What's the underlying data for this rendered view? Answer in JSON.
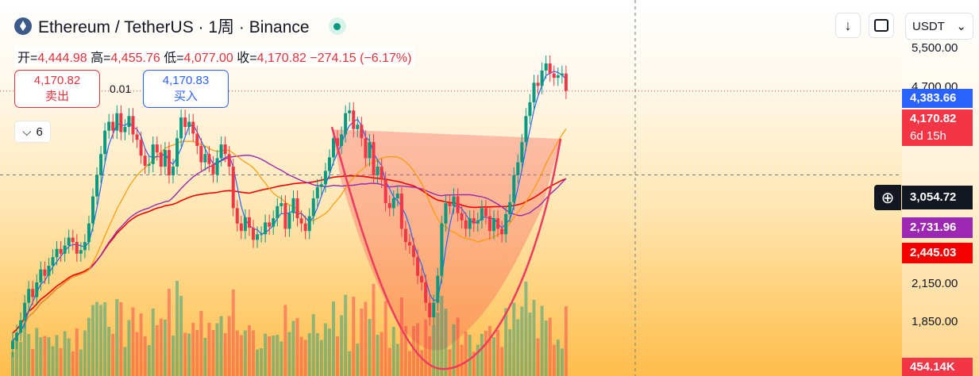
{
  "header": {
    "title": "Ethereum / TetherUS · 1周 · Binance"
  },
  "ohlc": {
    "open_label": "开=",
    "open": "4,444.98",
    "high_label": "高=",
    "high": "4,455.76",
    "low_label": "低=",
    "low": "4,077.00",
    "close_label": "收=",
    "close": "4,170.82",
    "change": "−274.15 (−6.17%)"
  },
  "trade": {
    "sell_price": "4,170.82",
    "sell_label": "卖出",
    "spread": "0.01",
    "buy_price": "4,170.83",
    "buy_label": "买入"
  },
  "indicators_toggle": {
    "count": "6",
    "icon": "chevron-down-icon"
  },
  "toolbar": {
    "download_icon": "arrow-down-icon",
    "fullscreen_icon": "fullscreen-icon",
    "currency": "USDT"
  },
  "price_axis": {
    "labels": [
      "5,500.00",
      "4,700.00",
      "2,150.00",
      "1,850.00"
    ],
    "tags": {
      "ma_blue": "4,383.66",
      "last": "4,170.82",
      "countdown": "6d 15h",
      "crosshair": "3,054.72",
      "ma_purple": "2,731.96",
      "ma_red": "2,445.03",
      "volume": "454.14K"
    }
  },
  "colors": {
    "up": "#089981",
    "down": "#f23645",
    "ma_blue": "#2962ff",
    "ma_orange": "#ff9800",
    "ma_purple": "#9c27b0",
    "ma_red": "#f50000",
    "cup": "#f03a5f"
  },
  "chart_data": {
    "type": "candlestick",
    "symbol": "Ethereum / TetherUS",
    "timeframe": "1周",
    "exchange": "Binance",
    "price_range": [
      1600,
      5000
    ],
    "candles_close": [
      1650,
      1700,
      1780,
      1900,
      2000,
      1940,
      2050,
      2150,
      2100,
      2180,
      2250,
      2320,
      2280,
      2350,
      2420,
      2380,
      2280,
      2310,
      2380,
      2550,
      2820,
      3050,
      3300,
      3600,
      3720,
      3600,
      3840,
      3580,
      3650,
      3800,
      3550,
      3480,
      3280,
      3160,
      3180,
      3420,
      3320,
      3150,
      3350,
      3050,
      3150,
      3500,
      3780,
      3650,
      3720,
      3560,
      3400,
      3200,
      3300,
      3180,
      3060,
      3250,
      3420,
      3300,
      3150,
      2700,
      2550,
      2480,
      2610,
      2510,
      2400,
      2450,
      2450,
      2560,
      2520,
      2600,
      2720,
      2750,
      2500,
      2650,
      2800,
      2600,
      2550,
      2480,
      2620,
      2800,
      2920,
      2950,
      3100,
      3260,
      3500,
      3400,
      3550,
      3840,
      3880,
      3620,
      3680,
      3500,
      3250,
      3450,
      3050,
      3150,
      3000,
      2750,
      2700,
      2800,
      2850,
      2500,
      2380,
      2350,
      2250,
      2100,
      2050,
      1900,
      1800,
      1900,
      2100,
      2550,
      2750,
      2720,
      2820,
      2650,
      2580,
      2500,
      2600,
      2550,
      2580,
      2700,
      2620,
      2480,
      2600,
      2500,
      2450,
      2640,
      2760,
      3050,
      3200,
      3450,
      3800,
      4000,
      4300,
      4250,
      4500,
      4620,
      4450,
      4380,
      4420,
      4450,
      4170.82
    ],
    "ma_blue_last": 4383.66,
    "ma_purple_last": 2731.96,
    "ma_red_last": 2445.03,
    "volume_last": "454.14K",
    "annotation": "cup-shaped pattern drawing"
  }
}
